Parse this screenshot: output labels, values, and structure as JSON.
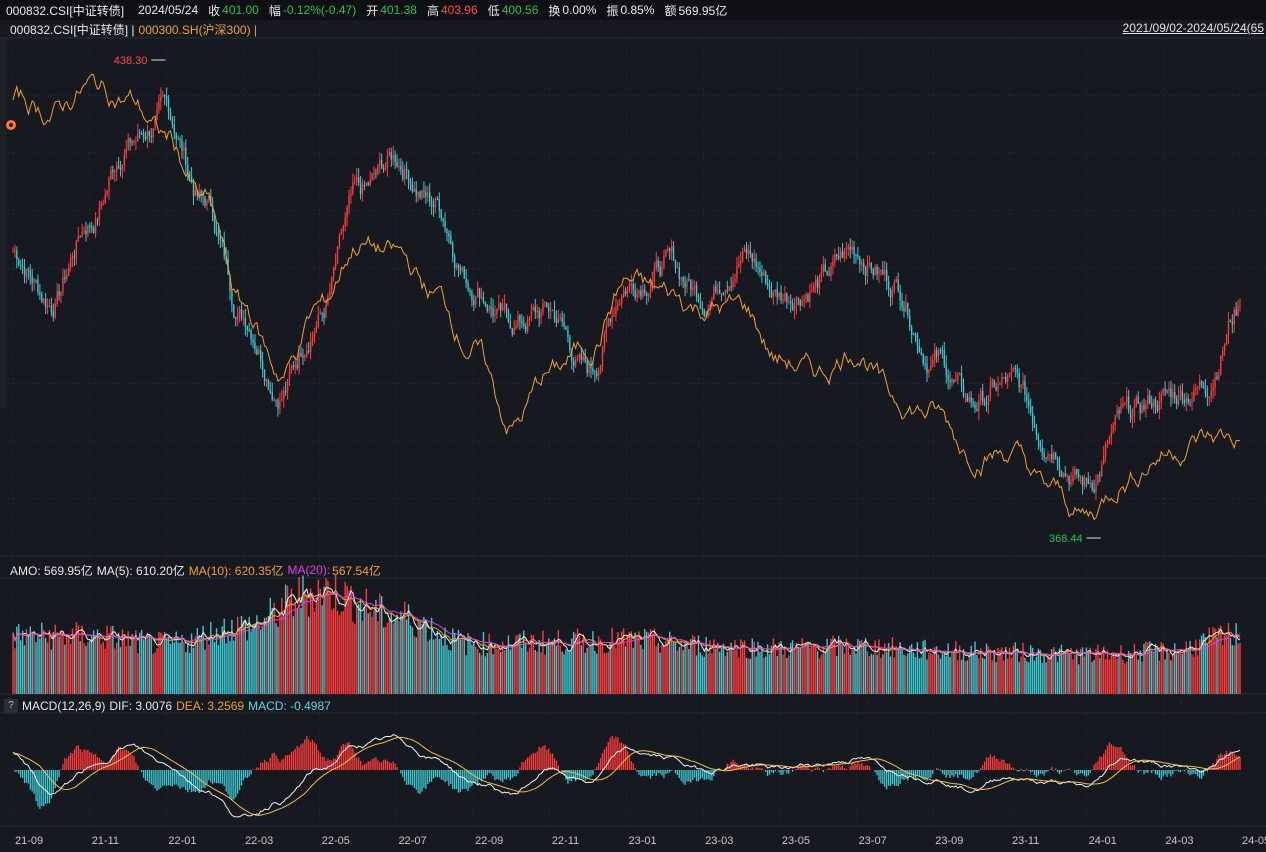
{
  "header": {
    "code": "000832.CSI[中证转债]",
    "date": "2024/05/24",
    "close_label": "收",
    "close": "401.00",
    "change_label": "幅",
    "change": "-0.12%(-0.47)",
    "open_label": "开",
    "open": "401.38",
    "high_label": "高",
    "high": "403.96",
    "low_label": "低",
    "low": "400.56",
    "turnover_label": "换",
    "turnover": "0.00%",
    "amplitude_label": "振",
    "amplitude": "0.85%",
    "amount_label": "额",
    "amount": "569.95亿"
  },
  "main_legend": {
    "primary": "000832.CSI[中证转债] |",
    "compare": "000300.SH(沪深300) |",
    "date_range": "2021/09/02-2024/05/24(65"
  },
  "amo_legend": {
    "amo": "AMO: 569.95亿",
    "ma5": "MA(5): 610.20亿",
    "ma10": "MA(10): 620.35亿",
    "ma20_name": "MA(20):",
    "ma20_value": "567.54亿"
  },
  "macd_legend": {
    "help": "?",
    "name": "MACD(12,26,9)",
    "dif": "DIF: 3.0076",
    "dea": "DEA: 3.2569",
    "macd": "MACD: -0.4987"
  },
  "colors": {
    "up": "#ff3b3b",
    "down": "#3fc8d0",
    "compare": "#f0a030",
    "ma10": "#f0a030",
    "ma20": "#e23ee2",
    "dif": "#f0f0f0",
    "dea": "#f0c040",
    "grid": "#2a2e36"
  },
  "chart_data": [
    {
      "type": "candlestick",
      "series_name": "000832.CSI[中证转债]",
      "annotations": [
        {
          "label": "438.30",
          "x": "22-01",
          "value": 438.3,
          "kind": "high"
        },
        {
          "label": "368.44",
          "x": "24-01",
          "value": 368.44,
          "kind": "low"
        }
      ],
      "ylim": [
        360,
        445
      ],
      "close_path": [
        [
          "21-09",
          410
        ],
        [
          "21-10",
          402
        ],
        [
          "21-11",
          415
        ],
        [
          "21-12",
          428
        ],
        [
          "22-01",
          432
        ],
        [
          "22-02",
          418
        ],
        [
          "22-03",
          400
        ],
        [
          "22-04",
          388
        ],
        [
          "22-05",
          400
        ],
        [
          "22-06",
          418
        ],
        [
          "22-07",
          425
        ],
        [
          "22-08",
          418
        ],
        [
          "22-09",
          405
        ],
        [
          "22-10",
          398
        ],
        [
          "22-11",
          400
        ],
        [
          "22-12",
          390
        ],
        [
          "23-01",
          405
        ],
        [
          "23-02",
          408
        ],
        [
          "23-03",
          403
        ],
        [
          "23-04",
          410
        ],
        [
          "23-05",
          403
        ],
        [
          "23-06",
          405
        ],
        [
          "23-07",
          410
        ],
        [
          "23-08",
          405
        ],
        [
          "23-09",
          393
        ],
        [
          "23-10",
          385
        ],
        [
          "23-11",
          388
        ],
        [
          "23-12",
          380
        ],
        [
          "24-01",
          372
        ],
        [
          "24-02",
          382
        ],
        [
          "24-03",
          386
        ],
        [
          "24-04",
          388
        ],
        [
          "24-05",
          401
        ]
      ]
    },
    {
      "type": "line",
      "series_name": "000300.SH(沪深300)",
      "values_relative_path": [
        [
          "21-09",
          4900
        ],
        [
          "21-10",
          4850
        ],
        [
          "21-11",
          4950
        ],
        [
          "21-12",
          4900
        ],
        [
          "22-01",
          4750
        ],
        [
          "22-02",
          4500
        ],
        [
          "22-03",
          4100
        ],
        [
          "22-04",
          3850
        ],
        [
          "22-05",
          4100
        ],
        [
          "22-06",
          4350
        ],
        [
          "22-07",
          4300
        ],
        [
          "22-08",
          4150
        ],
        [
          "22-09",
          3950
        ],
        [
          "22-10",
          3650
        ],
        [
          "22-11",
          3850
        ],
        [
          "22-12",
          3950
        ],
        [
          "23-01",
          4200
        ],
        [
          "23-02",
          4150
        ],
        [
          "23-03",
          4100
        ],
        [
          "23-04",
          4100
        ],
        [
          "23-05",
          3900
        ],
        [
          "23-06",
          3850
        ],
        [
          "23-07",
          3950
        ],
        [
          "23-08",
          3750
        ],
        [
          "23-09",
          3700
        ],
        [
          "23-10",
          3550
        ],
        [
          "23-11",
          3550
        ],
        [
          "23-12",
          3400
        ],
        [
          "24-01",
          3300
        ],
        [
          "24-02",
          3450
        ],
        [
          "24-03",
          3550
        ],
        [
          "24-04",
          3600
        ],
        [
          "24-05",
          3600
        ]
      ]
    },
    {
      "type": "bar",
      "series_name": "AMO",
      "unit": "亿",
      "profile": [
        [
          "21-09",
          560
        ],
        [
          "21-11",
          560
        ],
        [
          "22-01",
          480
        ],
        [
          "22-03",
          650
        ],
        [
          "22-05",
          1000
        ],
        [
          "22-07",
          750
        ],
        [
          "22-09",
          480
        ],
        [
          "22-11",
          500
        ],
        [
          "23-01",
          520
        ],
        [
          "23-03",
          470
        ],
        [
          "23-05",
          440
        ],
        [
          "23-07",
          460
        ],
        [
          "23-09",
          420
        ],
        [
          "23-11",
          400
        ],
        [
          "24-01",
          380
        ],
        [
          "24-03",
          410
        ],
        [
          "24-05",
          570
        ]
      ]
    },
    {
      "type": "line",
      "series_name": "MACD(12,26,9)",
      "dif_path": [
        [
          "21-09",
          3
        ],
        [
          "21-10",
          -4
        ],
        [
          "21-11",
          0
        ],
        [
          "21-12",
          4
        ],
        [
          "22-01",
          1
        ],
        [
          "22-02",
          -3
        ],
        [
          "22-03",
          -8
        ],
        [
          "22-04",
          -5
        ],
        [
          "22-05",
          0
        ],
        [
          "22-06",
          4
        ],
        [
          "22-07",
          5
        ],
        [
          "22-08",
          2
        ],
        [
          "22-09",
          -2
        ],
        [
          "22-10",
          -4
        ],
        [
          "22-11",
          0
        ],
        [
          "22-12",
          -2
        ],
        [
          "23-01",
          3
        ],
        [
          "23-02",
          2
        ],
        [
          "23-03",
          0
        ],
        [
          "23-04",
          1
        ],
        [
          "23-05",
          0
        ],
        [
          "23-06",
          1
        ],
        [
          "23-07",
          2
        ],
        [
          "23-08",
          0
        ],
        [
          "23-09",
          -1
        ],
        [
          "23-10",
          -3
        ],
        [
          "23-11",
          -1
        ],
        [
          "23-12",
          -2
        ],
        [
          "24-01",
          -3
        ],
        [
          "24-02",
          2
        ],
        [
          "24-03",
          1
        ],
        [
          "24-04",
          0
        ],
        [
          "24-05",
          3
        ]
      ],
      "x_ticks": [
        "21-09",
        "21-11",
        "22-01",
        "22-03",
        "22-05",
        "22-07",
        "22-09",
        "22-11",
        "23-01",
        "23-03",
        "23-05",
        "23-07",
        "23-09",
        "23-11",
        "24-01",
        "24-03",
        "24-05"
      ]
    }
  ]
}
